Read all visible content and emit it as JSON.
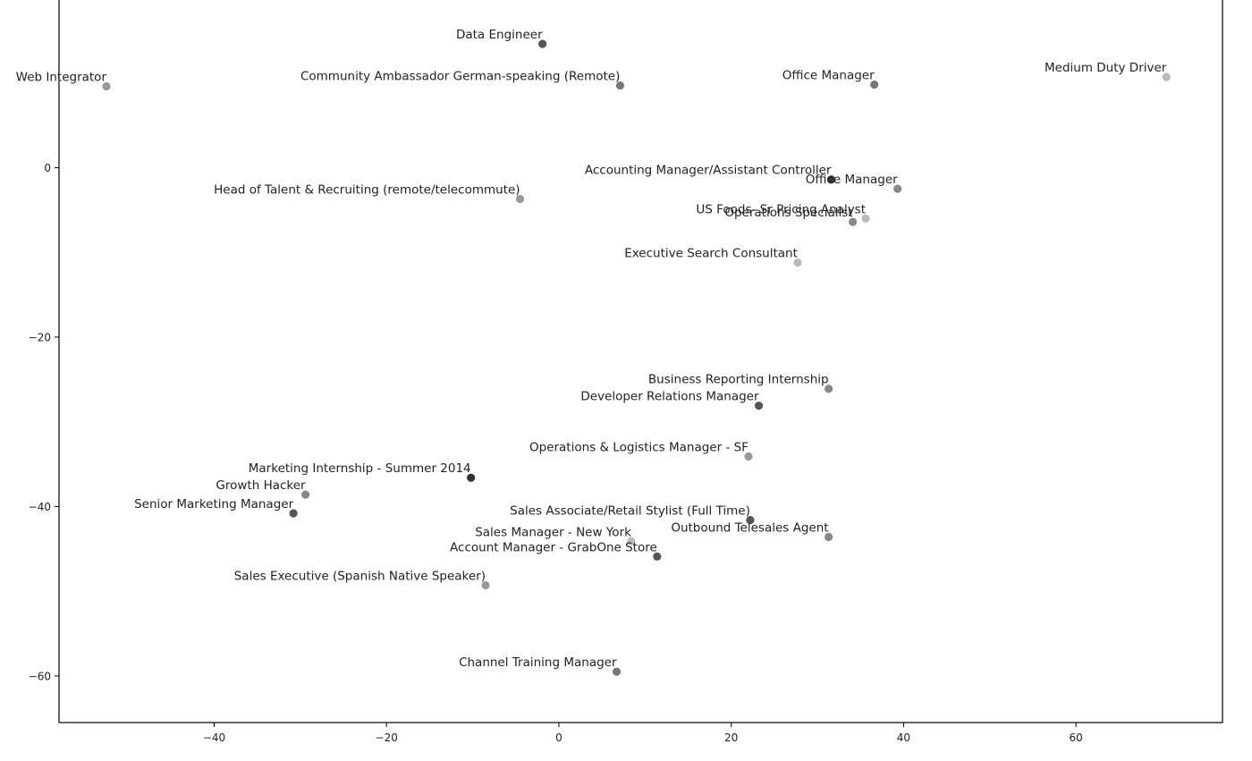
{
  "chart_data": {
    "type": "scatter",
    "title": "",
    "xlabel": "",
    "ylabel": "",
    "xlim": [
      -58.0,
      77.0
    ],
    "ylim": [
      -65.5,
      20.0
    ],
    "xticks": [
      -40,
      -20,
      0,
      20,
      40,
      60
    ],
    "yticks": [
      -60,
      -40,
      -20,
      0
    ],
    "tick_labels_x": [
      "−40",
      "−20",
      "0",
      "20",
      "40",
      "60"
    ],
    "tick_labels_y": [
      "−60",
      "−40",
      "−20",
      "0"
    ],
    "grid": false,
    "legend": "none",
    "points": [
      {
        "label": "Data Engineer",
        "x": -1.9,
        "y": 14.6,
        "color": "#555555"
      },
      {
        "label": "Web Integrator",
        "x": -52.5,
        "y": 9.6,
        "color": "#999999"
      },
      {
        "label": "Community Ambassador German-speaking (Remote)",
        "x": 7.1,
        "y": 9.7,
        "color": "#777777"
      },
      {
        "label": "Office Manager",
        "x": 36.6,
        "y": 9.8,
        "color": "#777777"
      },
      {
        "label": "Medium Duty Driver",
        "x": 70.5,
        "y": 10.7,
        "color": "#bbbbbb"
      },
      {
        "label": "Accounting Manager/Assistant Controller",
        "x": 31.6,
        "y": -1.4,
        "color": "#333333"
      },
      {
        "label": "Office Manager",
        "x": 39.3,
        "y": -2.5,
        "color": "#888888"
      },
      {
        "label": "Head of Talent & Recruiting (remote/telecommute)",
        "x": -4.5,
        "y": -3.7,
        "color": "#999999"
      },
      {
        "label": "US Foods- Sr Pricing Analyst",
        "x": 35.6,
        "y": -6.0,
        "color": "#bbbbbb"
      },
      {
        "label": "Operations Specialist",
        "x": 34.1,
        "y": -6.4,
        "color": "#888888"
      },
      {
        "label": "Executive Search Consultant",
        "x": 27.7,
        "y": -11.2,
        "color": "#bbbbbb"
      },
      {
        "label": "Business Reporting Internship",
        "x": 31.3,
        "y": -26.1,
        "color": "#888888"
      },
      {
        "label": "Developer Relations Manager",
        "x": 23.2,
        "y": -28.1,
        "color": "#555555"
      },
      {
        "label": "Operations & Logistics Manager - SF",
        "x": 22.0,
        "y": -34.1,
        "color": "#999999"
      },
      {
        "label": "Marketing Internship - Summer 2014",
        "x": -10.2,
        "y": -36.6,
        "color": "#333333"
      },
      {
        "label": "Growth Hacker",
        "x": -29.4,
        "y": -38.6,
        "color": "#888888"
      },
      {
        "label": "Senior Marketing Manager",
        "x": -30.8,
        "y": -40.8,
        "color": "#555555"
      },
      {
        "label": "Sales Associate/Retail Stylist (Full Time)",
        "x": 22.2,
        "y": -41.6,
        "color": "#555555"
      },
      {
        "label": "Outbound Telesales Agent",
        "x": 31.3,
        "y": -43.6,
        "color": "#888888"
      },
      {
        "label": "Sales Manager - New York",
        "x": 8.4,
        "y": -44.1,
        "color": "#bbbbbb"
      },
      {
        "label": "Account Manager - GrabOne Store",
        "x": 11.4,
        "y": -45.9,
        "color": "#555555"
      },
      {
        "label": "Sales Executive (Spanish Native Speaker)",
        "x": -8.5,
        "y": -49.3,
        "color": "#999999"
      },
      {
        "label": "Channel Training Manager",
        "x": 6.7,
        "y": -59.5,
        "color": "#777777"
      }
    ]
  }
}
